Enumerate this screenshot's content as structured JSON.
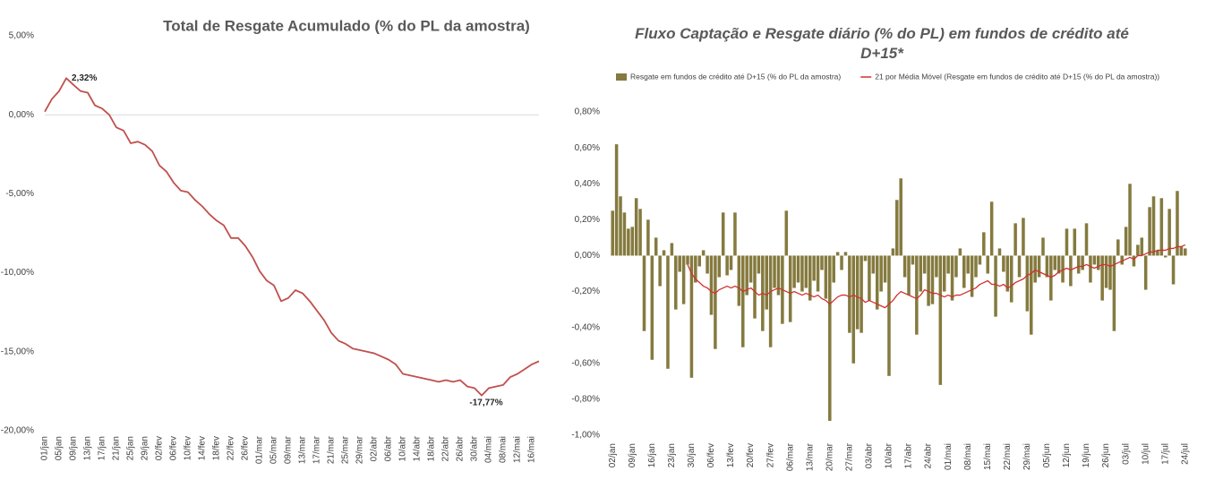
{
  "chart_data": [
    {
      "type": "line",
      "title": "Total de Resgate Acumulado (% do PL da amostra)",
      "color": "#c0504d",
      "zero_line": true,
      "categories": [
        "01/jan",
        null,
        "05/jan",
        null,
        "09/jan",
        null,
        "13/jan",
        null,
        "17/jan",
        null,
        "21/jan",
        null,
        "25/jan",
        null,
        "29/jan",
        null,
        "02/fev",
        null,
        "06/fev",
        null,
        "10/fev",
        null,
        "14/fev",
        null,
        "18/fev",
        null,
        "22/fev",
        null,
        "26/fev",
        null,
        "01/mar",
        null,
        "05/mar",
        null,
        "09/mar",
        null,
        "13/mar",
        null,
        "17/mar",
        null,
        "21/mar",
        null,
        "25/mar",
        null,
        "29/mar",
        null,
        "02/abr",
        null,
        "06/abr",
        null,
        "10/abr",
        null,
        "14/abr",
        null,
        "18/abr",
        null,
        "22/abr",
        null,
        "26/abr",
        null,
        "30/abr",
        null,
        "04/mai",
        null,
        "08/mai",
        null,
        "12/mai",
        null,
        "16/mai",
        null
      ],
      "values": [
        0.2,
        1.0,
        1.5,
        2.32,
        1.9,
        1.5,
        1.4,
        0.6,
        0.4,
        0.0,
        -0.8,
        -1.0,
        -1.8,
        -1.7,
        -1.9,
        -2.3,
        -3.2,
        -3.6,
        -4.3,
        -4.8,
        -4.9,
        -5.4,
        -5.8,
        -6.3,
        -6.7,
        -7.0,
        -7.8,
        -7.8,
        -8.3,
        -9.0,
        -9.9,
        -10.5,
        -10.8,
        -11.8,
        -11.6,
        -11.1,
        -11.3,
        -11.8,
        -12.4,
        -13.0,
        -13.8,
        -14.3,
        -14.5,
        -14.8,
        -14.9,
        -15.0,
        -15.1,
        -15.3,
        -15.5,
        -15.8,
        -16.4,
        -16.5,
        -16.6,
        -16.7,
        -16.8,
        -16.9,
        -16.8,
        -16.9,
        -16.8,
        -17.2,
        -17.3,
        -17.77,
        -17.3,
        -17.2,
        -17.1,
        -16.6,
        -16.4,
        -16.1,
        -15.8,
        -15.6
      ],
      "value_labels": [
        null,
        null,
        null,
        "2,32%",
        null,
        null,
        null,
        null,
        null,
        null,
        null,
        null,
        null,
        null,
        null,
        null,
        null,
        null,
        null,
        null,
        null,
        null,
        null,
        null,
        null,
        null,
        null,
        null,
        null,
        null,
        null,
        null,
        null,
        null,
        null,
        null,
        null,
        null,
        null,
        null,
        null,
        null,
        null,
        null,
        null,
        null,
        null,
        null,
        null,
        null,
        null,
        null,
        null,
        null,
        null,
        null,
        null,
        null,
        null,
        null,
        null,
        "-17,77%",
        null,
        null,
        null,
        null,
        null,
        null,
        null,
        null
      ],
      "ylim": [
        -20,
        5
      ],
      "yticks": [
        {
          "value": 5,
          "label": "5,00%"
        },
        {
          "value": 0,
          "label": "0,00%"
        },
        {
          "value": -5,
          "label": "-5,00%"
        },
        {
          "value": -10,
          "label": "-10,00%"
        },
        {
          "value": -15,
          "label": "-15,00%"
        },
        {
          "value": -20,
          "label": "-20,00%"
        }
      ]
    },
    {
      "type": "bar",
      "title": "Fluxo Captação e Resgate diário (% do PL) em fundos de crédito até D+15*",
      "zero_line": false,
      "categories": [
        "02/jan",
        null,
        null,
        null,
        null,
        "09/jan",
        null,
        null,
        null,
        null,
        "16/jan",
        null,
        null,
        null,
        null,
        "23/jan",
        null,
        null,
        null,
        null,
        "30/jan",
        null,
        null,
        null,
        null,
        "06/fev",
        null,
        null,
        null,
        null,
        "13/fev",
        null,
        null,
        null,
        null,
        "20/fev",
        null,
        null,
        null,
        null,
        "27/fev",
        null,
        null,
        null,
        null,
        "06/mar",
        null,
        null,
        null,
        null,
        "13/mar",
        null,
        null,
        null,
        null,
        "20/mar",
        null,
        null,
        null,
        null,
        "27/mar",
        null,
        null,
        null,
        null,
        "03/abr",
        null,
        null,
        null,
        null,
        "10/abr",
        null,
        null,
        null,
        null,
        "17/abr",
        null,
        null,
        null,
        null,
        "24/abr",
        null,
        null,
        null,
        null,
        "01/mai",
        null,
        null,
        null,
        null,
        "08/mai",
        null,
        null,
        null,
        null,
        "15/mai",
        null,
        null,
        null,
        null,
        "22/mai",
        null,
        null,
        null,
        null,
        "29/mai",
        null,
        null,
        null,
        null,
        "05/jun",
        null,
        null,
        null,
        null,
        "12/jun",
        null,
        null,
        null,
        null,
        "19/jun",
        null,
        null,
        null,
        null,
        "26/jun",
        null,
        null,
        null,
        null,
        "03/jul",
        null,
        null,
        null,
        null,
        "10/jul",
        null,
        null,
        null,
        null,
        "17/jul",
        null,
        null,
        null,
        null,
        "24/jul"
      ],
      "series": [
        {
          "name": "Resgate em fundos de crédito até D+15 (% do PL da amostra)",
          "type": "bar",
          "color": "#857a3f",
          "values": [
            0.25,
            0.62,
            0.33,
            0.24,
            0.15,
            0.16,
            0.32,
            0.26,
            -0.42,
            0.2,
            -0.58,
            0.1,
            -0.17,
            0.03,
            -0.63,
            0.07,
            -0.3,
            -0.09,
            -0.27,
            -0.05,
            -0.68,
            -0.15,
            -0.06,
            0.03,
            -0.1,
            -0.33,
            -0.52,
            -0.12,
            0.24,
            -0.11,
            -0.08,
            0.24,
            -0.28,
            -0.51,
            -0.22,
            -0.15,
            -0.35,
            -0.1,
            -0.42,
            -0.3,
            -0.51,
            -0.18,
            -0.22,
            -0.38,
            0.25,
            -0.37,
            -0.18,
            -0.15,
            -0.2,
            -0.18,
            -0.25,
            -0.14,
            -0.2,
            -0.08,
            -0.24,
            -0.92,
            -0.15,
            0.02,
            -0.08,
            0.02,
            -0.43,
            -0.6,
            -0.41,
            -0.43,
            -0.03,
            -0.25,
            -0.1,
            -0.3,
            -0.2,
            -0.15,
            -0.67,
            0.04,
            0.31,
            0.43,
            -0.12,
            -0.22,
            -0.05,
            -0.44,
            -0.2,
            -0.1,
            -0.28,
            -0.27,
            -0.12,
            -0.72,
            -0.2,
            -0.1,
            -0.25,
            -0.12,
            0.04,
            -0.18,
            -0.1,
            -0.23,
            -0.12,
            -0.05,
            0.13,
            -0.1,
            0.3,
            -0.34,
            0.04,
            -0.09,
            -0.2,
            -0.26,
            0.18,
            -0.12,
            0.21,
            -0.31,
            -0.44,
            -0.15,
            -0.12,
            0.1,
            -0.12,
            -0.25,
            -0.08,
            -0.1,
            -0.15,
            0.15,
            -0.17,
            0.15,
            -0.1,
            -0.08,
            0.18,
            -0.15,
            -0.05,
            -0.08,
            -0.25,
            -0.18,
            -0.19,
            -0.42,
            0.09,
            -0.05,
            0.16,
            0.4,
            -0.06,
            0.06,
            0.1,
            -0.19,
            0.27,
            0.33,
            0.03,
            0.32,
            -0.01,
            0.26,
            -0.16,
            0.36,
            0.05,
            0.04
          ]
        },
        {
          "name": "21 por Média Móvel (Resgate em fundos de crédito até D+15 (% do PL da amostra))",
          "type": "line",
          "color": "#d0312d",
          "values": [
            null,
            null,
            null,
            null,
            null,
            null,
            null,
            null,
            null,
            null,
            null,
            null,
            null,
            null,
            null,
            null,
            null,
            null,
            null,
            -0.05,
            -0.1,
            -0.13,
            -0.15,
            -0.17,
            -0.18,
            -0.2,
            -0.21,
            -0.19,
            -0.18,
            -0.17,
            -0.18,
            -0.17,
            -0.18,
            -0.2,
            -0.19,
            -0.18,
            -0.2,
            -0.22,
            -0.21,
            -0.22,
            -0.2,
            -0.19,
            -0.18,
            -0.19,
            -0.2,
            -0.21,
            -0.2,
            -0.21,
            -0.22,
            -0.21,
            -0.22,
            -0.23,
            -0.22,
            -0.24,
            -0.25,
            -0.27,
            -0.25,
            -0.23,
            -0.22,
            -0.22,
            -0.23,
            -0.22,
            -0.23,
            -0.24,
            -0.26,
            -0.25,
            -0.26,
            -0.27,
            -0.28,
            -0.29,
            -0.27,
            -0.25,
            -0.22,
            -0.2,
            -0.21,
            -0.22,
            -0.23,
            -0.24,
            -0.22,
            -0.19,
            -0.2,
            -0.21,
            -0.21,
            -0.22,
            -0.23,
            -0.22,
            -0.23,
            -0.22,
            -0.22,
            -0.21,
            -0.2,
            -0.19,
            -0.18,
            -0.16,
            -0.15,
            -0.14,
            -0.16,
            -0.16,
            -0.17,
            -0.16,
            -0.18,
            -0.17,
            -0.15,
            -0.14,
            -0.13,
            -0.11,
            -0.1,
            -0.08,
            -0.09,
            -0.1,
            -0.11,
            -0.12,
            -0.11,
            -0.09,
            -0.08,
            -0.07,
            -0.08,
            -0.07,
            -0.06,
            -0.06,
            -0.05,
            -0.06,
            -0.07,
            -0.06,
            -0.05,
            -0.05,
            -0.06,
            -0.05,
            -0.04,
            -0.03,
            -0.02,
            -0.01,
            -0.02,
            0.0,
            0.0,
            0.01,
            0.02,
            0.02,
            0.03,
            0.03,
            0.03,
            0.04,
            0.04,
            0.05,
            0.05,
            0.06
          ]
        }
      ],
      "ylim": [
        -1.0,
        0.8
      ],
      "yticks": [
        {
          "value": 0.8,
          "label": "0,80%"
        },
        {
          "value": 0.6,
          "label": "0,60%"
        },
        {
          "value": 0.4,
          "label": "0,40%"
        },
        {
          "value": 0.2,
          "label": "0,20%"
        },
        {
          "value": 0,
          "label": "0,00%"
        },
        {
          "value": -0.2,
          "label": "-0,20%"
        },
        {
          "value": -0.4,
          "label": "-0,40%"
        },
        {
          "value": -0.6,
          "label": "-0,60%"
        },
        {
          "value": -0.8,
          "label": "-0,80%"
        },
        {
          "value": -1.0,
          "label": "-1,00%"
        }
      ]
    }
  ]
}
